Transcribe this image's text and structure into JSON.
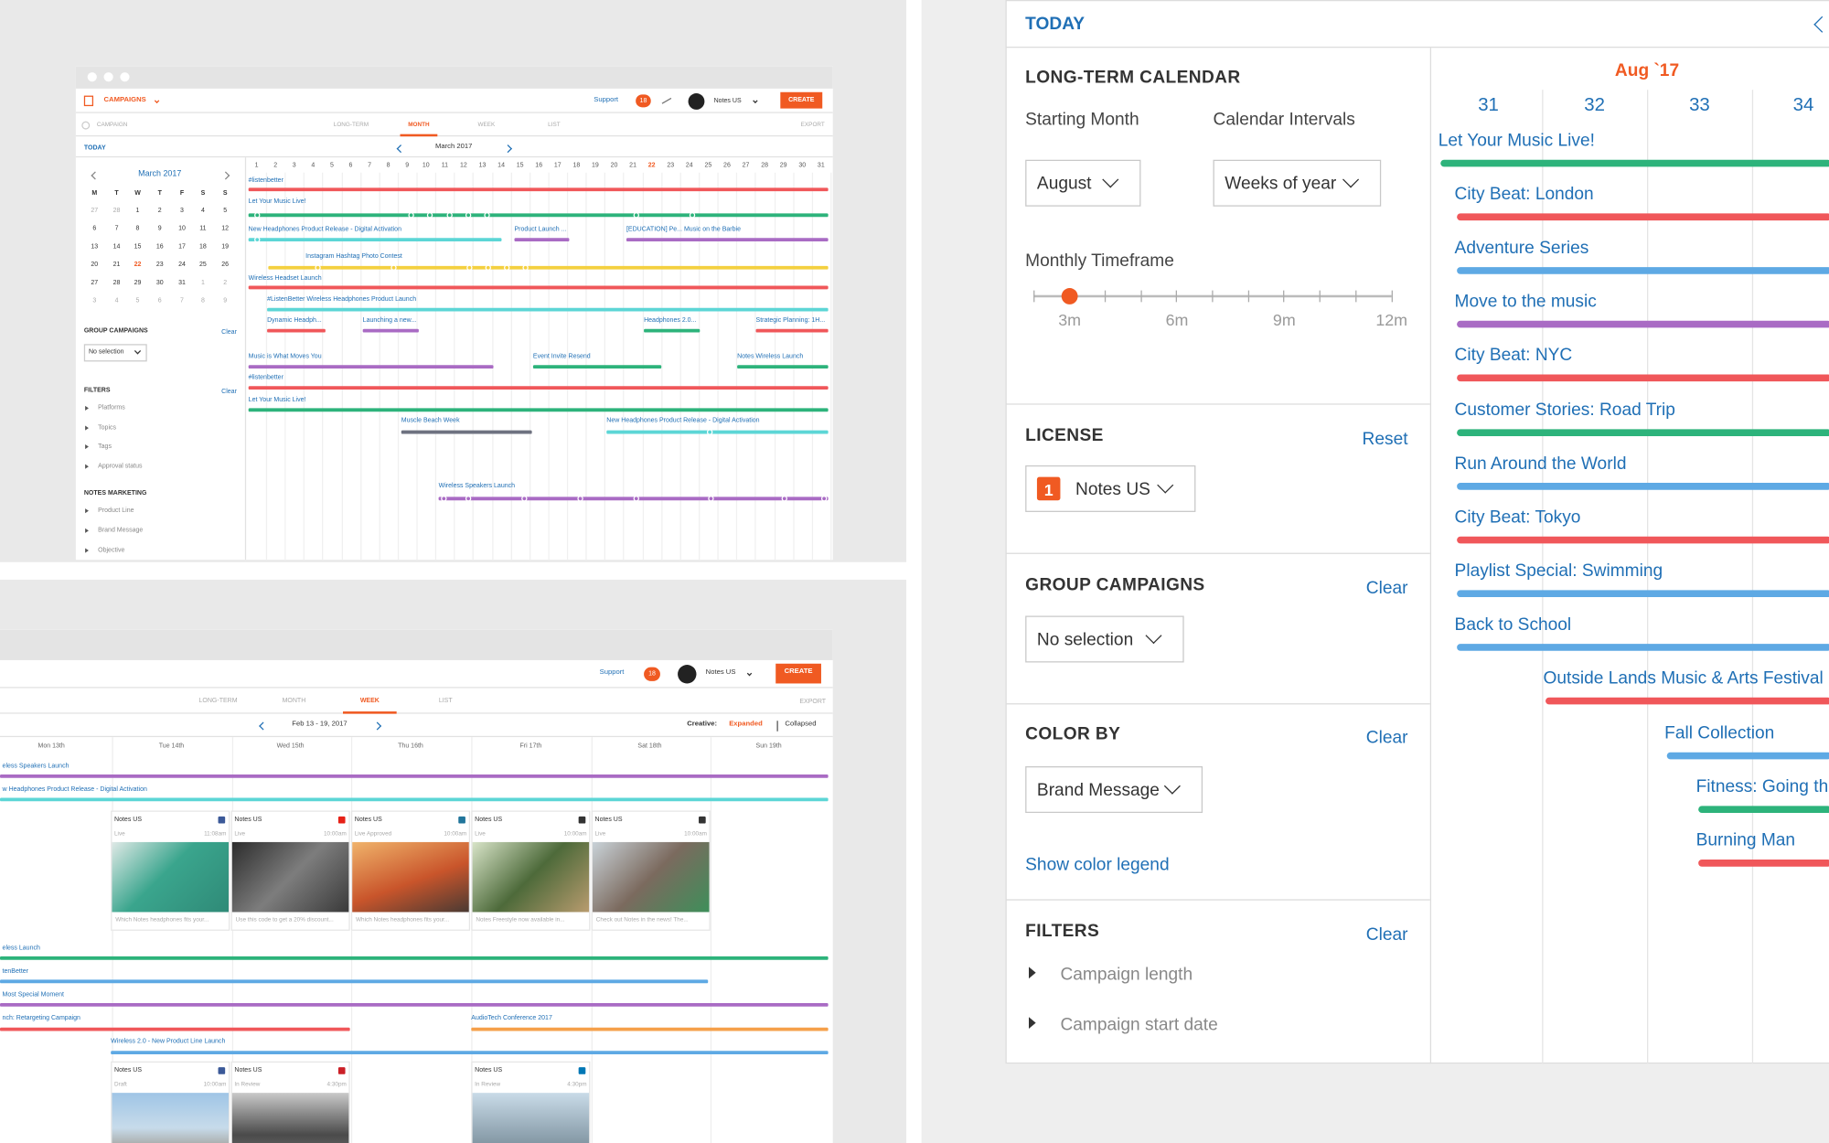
{
  "top_window": {
    "header": {
      "brand": "CAMPAIGNS",
      "support": "Support",
      "badge": "18",
      "account": "Notes US",
      "create": "CREATE"
    },
    "tabs": {
      "campaign": "CAMPAIGN",
      "items": [
        "LONG-TERM",
        "MONTH",
        "WEEK",
        "LIST"
      ],
      "export": "EXPORT"
    },
    "today": "TODAY",
    "period": "March 2017",
    "mini_calendar": {
      "title": "March 2017",
      "weekdays": [
        "M",
        "T",
        "W",
        "T",
        "F",
        "S",
        "S"
      ],
      "weeks": [
        [
          27,
          28,
          1,
          2,
          3,
          4,
          5
        ],
        [
          6,
          7,
          8,
          9,
          10,
          11,
          12
        ],
        [
          13,
          14,
          15,
          16,
          17,
          18,
          19
        ],
        [
          20,
          21,
          22,
          23,
          24,
          25,
          26
        ],
        [
          27,
          28,
          29,
          30,
          31,
          1,
          2
        ],
        [
          3,
          4,
          5,
          6,
          7,
          8,
          9
        ]
      ]
    },
    "group_campaigns": {
      "title": "GROUP CAMPAIGNS",
      "clear": "Clear",
      "select": "No selection"
    },
    "filters": {
      "title": "FILTERS",
      "clear": "Clear",
      "items": [
        "Platforms",
        "Topics",
        "Tags",
        "Approval status"
      ]
    },
    "notes_marketing": {
      "title": "NOTES MARKETING",
      "items": [
        "Product Line",
        "Brand Message",
        "Objective"
      ]
    },
    "days": [
      1,
      2,
      3,
      4,
      5,
      6,
      7,
      8,
      9,
      10,
      11,
      12,
      13,
      14,
      15,
      16,
      17,
      18,
      19,
      20,
      21,
      22,
      23,
      24,
      25,
      26,
      27,
      28,
      29,
      30,
      31
    ],
    "campaigns": [
      "#listenbetter",
      "Let Your Music Live!",
      "New Headphones Product Release - Digital Activation",
      "Product Launch ...",
      "[EDUCATION] Pe... Music on the Barbie",
      "Instagram Hashtag Photo Contest",
      "Wireless Headset Launch",
      "#ListenBetter Wireless Headphones Product Launch",
      "Dynamic Headph...",
      "Launching a new...",
      "Headphones 2.0...",
      "Strategic Planning: 1H...",
      "Music is What Moves You",
      "Event Invite Resend",
      "Notes Wireless Launch",
      "#listenbetter",
      "Let Your Music Live!",
      "Muscle Beach Week",
      "New Headphones Product Release - Digital Activation",
      "Wireless Speakers Launch"
    ]
  },
  "bottom_window": {
    "header": {
      "support": "Support",
      "badge": "18",
      "account": "Notes US",
      "create": "CREATE"
    },
    "tabs": {
      "items": [
        "LONG-TERM",
        "MONTH",
        "WEEK",
        "LIST"
      ],
      "export": "EXPORT"
    },
    "period": "Feb 13 - 19, 2017",
    "creative": {
      "label": "Creative:",
      "expanded": "Expanded",
      "collapsed": "Collapsed"
    },
    "days": [
      "Mon 13th",
      "Tue 14th",
      "Wed 15th",
      "Thu 16th",
      "Fri 17th",
      "Sat 18th",
      "Sun 19th"
    ],
    "campaigns": [
      "eless Speakers Launch",
      "w Headphones Product Release - Digital Activation",
      "eless Launch",
      "tenBetter",
      "Most Special Moment",
      "nch: Retargeting Campaign",
      "AudioTech Conference 2017",
      "Wireless 2.0 - New Product Line Launch"
    ],
    "posts": [
      {
        "account": "Notes US",
        "status": "Live",
        "time": "11:08am",
        "caption": "Which Notes headphones fits your..."
      },
      {
        "account": "Notes US",
        "status": "Live",
        "time": "10:00am",
        "caption": "Use this code to get a 20% discount..."
      },
      {
        "account": "Notes US",
        "status": "Live Approved",
        "time": "10:00am",
        "caption": "Which Notes headphones fits your..."
      },
      {
        "account": "Notes US",
        "status": "Live",
        "time": "10:00am",
        "caption": "Notes Freestyle now available in..."
      },
      {
        "account": "Notes US",
        "status": "Live",
        "time": "10:00am",
        "caption": "Check out Notes in the news! The..."
      },
      {
        "account": "Notes US",
        "status": "Draft",
        "time": "10:00am"
      },
      {
        "account": "Notes US",
        "status": "In Review",
        "time": "4:30pm"
      },
      {
        "account": "Notes US",
        "status": "In Review",
        "time": "4:30pm"
      }
    ]
  },
  "panel": {
    "today": "TODAY",
    "long_term": {
      "title": "LONG-TERM CALENDAR",
      "starting_month": {
        "label": "Starting Month",
        "value": "August"
      },
      "intervals": {
        "label": "Calendar Intervals",
        "value": "Weeks of year"
      },
      "timeframe": {
        "label": "Monthly Timeframe",
        "ticks": [
          "3m",
          "6m",
          "9m",
          "12m"
        ]
      }
    },
    "license": {
      "title": "LICENSE",
      "reset": "Reset",
      "badge": "1",
      "value": "Notes US"
    },
    "group_campaigns": {
      "title": "GROUP CAMPAIGNS",
      "clear": "Clear",
      "value": "No selection"
    },
    "color_by": {
      "title": "COLOR BY",
      "clear": "Clear",
      "value": "Brand Message",
      "legend_link": "Show color legend"
    },
    "filters": {
      "title": "FILTERS",
      "clear": "Clear",
      "items": [
        "Campaign length",
        "Campaign start date"
      ]
    },
    "timeline": {
      "month": "Aug `17",
      "weeks": [
        "31",
        "32",
        "33",
        "34"
      ],
      "campaigns": [
        "Let Your Music Live!",
        "City Beat: London",
        "Adventure Series",
        "Move to the music",
        "City Beat: NYC",
        "Customer Stories: Road Trip",
        "Run Around the World",
        "City Beat: Tokyo",
        "Playlist Special: Swimming",
        "Back to School",
        "Outside Lands Music & Arts Festival",
        "Fall Collection",
        "Fitness: Going th",
        "Burning Man"
      ]
    }
  }
}
